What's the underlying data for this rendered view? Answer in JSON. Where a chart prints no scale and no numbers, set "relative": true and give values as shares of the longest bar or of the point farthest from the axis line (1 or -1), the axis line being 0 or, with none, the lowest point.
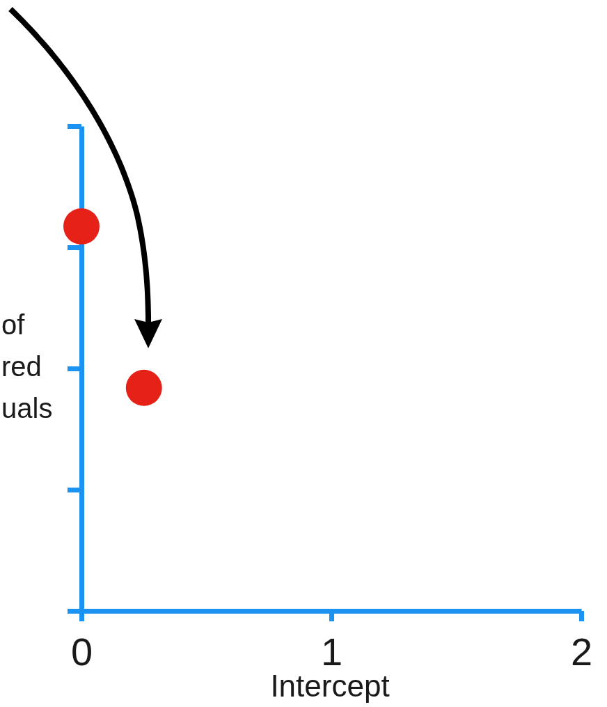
{
  "chart_data": {
    "type": "scatter",
    "xlabel": "Intercept",
    "ylabel": "of\nred\nuals",
    "x": [
      0,
      0.25
    ],
    "series": [
      {
        "color": "#e62117",
        "values": [
          1,
          0.58
        ]
      }
    ],
    "xlim": [
      0,
      2
    ],
    "xticks": [
      0,
      1,
      2
    ],
    "relative": true,
    "marker": "circle"
  }
}
